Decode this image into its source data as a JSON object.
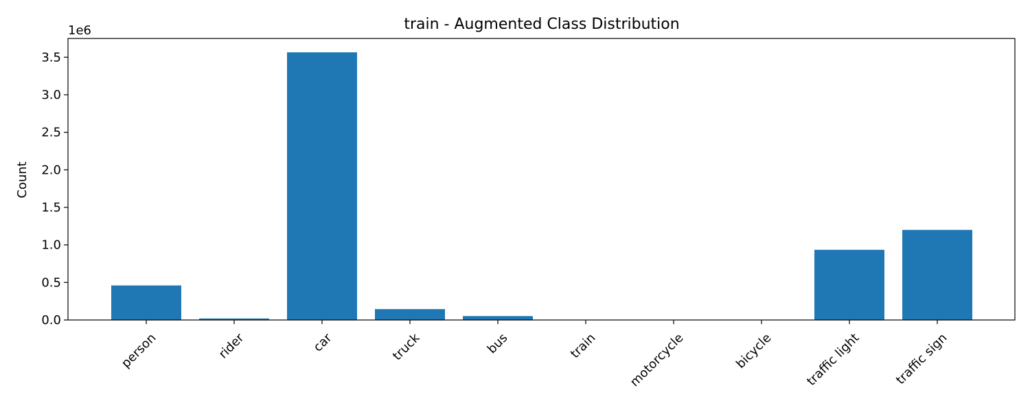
{
  "chart_data": {
    "type": "bar",
    "title": "train - Augmented Class Distribution",
    "xlabel": "",
    "ylabel": "Count",
    "y_offset_label": "1e6",
    "categories": [
      "person",
      "rider",
      "car",
      "truck",
      "bus",
      "train",
      "motorcycle",
      "bicycle",
      "traffic light",
      "traffic sign"
    ],
    "values": [
      460000,
      20000,
      3565000,
      145000,
      52000,
      2000,
      2000,
      2000,
      935000,
      1200000
    ],
    "ylim": [
      0,
      3750000
    ],
    "y_ticks": [
      0,
      500000,
      1000000,
      1500000,
      2000000,
      2500000,
      3000000,
      3500000
    ],
    "y_tick_labels": [
      "0.0",
      "0.5",
      "1.0",
      "1.5",
      "2.0",
      "2.5",
      "3.0",
      "3.5"
    ],
    "bar_color": "#1f77b4",
    "grid": false
  }
}
